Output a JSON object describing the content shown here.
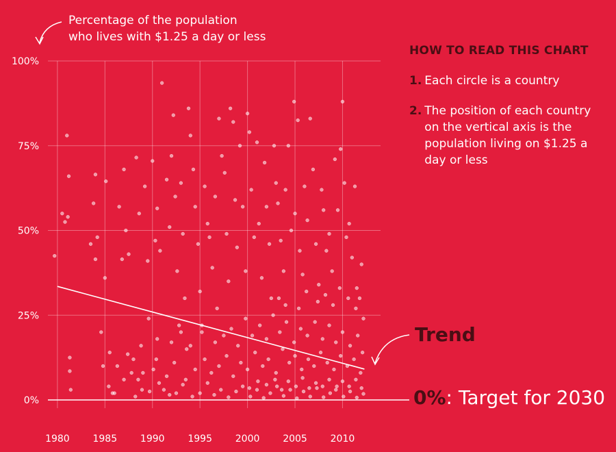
{
  "ylabel_lines": [
    "Percentage of the population",
    "who lives with $1.25 a day or less"
  ],
  "guide": {
    "title": "HOW TO READ THIS CHART",
    "steps": [
      {
        "num": "1.",
        "text": "Each circle is a country"
      },
      {
        "num": "2.",
        "text": "The position of each country on the vertical axis is the population living on $1.25 a day or less"
      }
    ]
  },
  "trend_label": "Trend",
  "target": {
    "bold": "0%",
    "rest": ": Target for 2030"
  },
  "colors": {
    "background": "#e31d3c",
    "accent_dark": "#4a0e14",
    "foreground": "#ffffff"
  },
  "chart_data": {
    "type": "scatter",
    "ylabel": "Percentage of the population who lives with $1.25 a day or less",
    "xlim": [
      1979,
      2014
    ],
    "ylim": [
      0,
      100
    ],
    "yticks": [
      0,
      25,
      50,
      75,
      100
    ],
    "ytick_labels": [
      "0%",
      "25%",
      "50%",
      "75%",
      "100%"
    ],
    "xticks": [
      1980,
      1985,
      1990,
      1995,
      2000,
      2005,
      2010
    ],
    "xtick_labels": [
      "1980",
      "1985",
      "1990",
      "1995",
      "2000",
      "2005",
      "2010"
    ],
    "grid": true,
    "trend": {
      "x": [
        1980,
        2012.3
      ],
      "y": [
        33.5,
        9.1
      ],
      "label": "Trend"
    },
    "target_line": {
      "y": 0
    },
    "points": [
      [
        1979.7,
        42.5
      ],
      [
        1980.5,
        55
      ],
      [
        1980.8,
        52.5
      ],
      [
        1981,
        78
      ],
      [
        1981.1,
        54
      ],
      [
        1981.3,
        12.5
      ],
      [
        1981.4,
        3
      ],
      [
        1981.2,
        66
      ],
      [
        1981.3,
        8.5
      ],
      [
        1983.5,
        46
      ],
      [
        1983.8,
        58
      ],
      [
        1984,
        66.5
      ],
      [
        1984.2,
        48
      ],
      [
        1984,
        41.5
      ],
      [
        1984.6,
        20
      ],
      [
        1984.8,
        10
      ],
      [
        1985.1,
        64.5
      ],
      [
        1985,
        36
      ],
      [
        1985.5,
        14
      ],
      [
        1985.8,
        2
      ],
      [
        1986.5,
        57
      ],
      [
        1986.8,
        41.5
      ],
      [
        1987,
        68
      ],
      [
        1987.2,
        50
      ],
      [
        1987.5,
        43
      ],
      [
        1987.4,
        13.5
      ],
      [
        1987.8,
        8
      ],
      [
        1988.3,
        71.5
      ],
      [
        1988.6,
        55
      ],
      [
        1988.8,
        16
      ],
      [
        1988.5,
        6
      ],
      [
        1988.9,
        3
      ],
      [
        1989.2,
        63
      ],
      [
        1989.5,
        41
      ],
      [
        1989.6,
        24
      ],
      [
        1990,
        70.5
      ],
      [
        1990.3,
        47
      ],
      [
        1990.5,
        56.5
      ],
      [
        1990.8,
        44
      ],
      [
        1990.4,
        12
      ],
      [
        1990.7,
        5
      ],
      [
        1991,
        93.5
      ],
      [
        1991.5,
        65
      ],
      [
        1991.8,
        51
      ],
      [
        1992,
        72
      ],
      [
        1992.2,
        84
      ],
      [
        1992.4,
        60
      ],
      [
        1992.6,
        38
      ],
      [
        1992.8,
        22
      ],
      [
        1993,
        64
      ],
      [
        1993.2,
        49
      ],
      [
        1993.4,
        30
      ],
      [
        1993.6,
        15
      ],
      [
        1993.8,
        86
      ],
      [
        1994,
        78
      ],
      [
        1994.3,
        68
      ],
      [
        1994.5,
        57
      ],
      [
        1994.8,
        46
      ],
      [
        1995,
        32
      ],
      [
        1995.2,
        20
      ],
      [
        1995.5,
        63
      ],
      [
        1995.8,
        52
      ],
      [
        1996,
        48
      ],
      [
        1996.3,
        39
      ],
      [
        1996.6,
        60
      ],
      [
        1996.8,
        27
      ],
      [
        1997,
        83
      ],
      [
        1997.3,
        72
      ],
      [
        1997.6,
        67
      ],
      [
        1997.8,
        49
      ],
      [
        1998,
        35
      ],
      [
        1998.2,
        86
      ],
      [
        1998.5,
        82
      ],
      [
        1998.7,
        59
      ],
      [
        1998.9,
        45
      ],
      [
        1999.2,
        75
      ],
      [
        1999.5,
        57
      ],
      [
        1999.8,
        38
      ],
      [
        2000,
        84.5
      ],
      [
        2000.2,
        79
      ],
      [
        2000.4,
        62
      ],
      [
        2000.7,
        48
      ],
      [
        2001,
        76
      ],
      [
        2001.2,
        52
      ],
      [
        2001.5,
        36
      ],
      [
        2001.8,
        70
      ],
      [
        2002,
        57
      ],
      [
        2002.3,
        46
      ],
      [
        2002.5,
        30
      ],
      [
        2002.8,
        75
      ],
      [
        2003,
        64
      ],
      [
        2003.2,
        58
      ],
      [
        2003.5,
        47
      ],
      [
        2003.8,
        38
      ],
      [
        2004,
        62
      ],
      [
        2004.3,
        75
      ],
      [
        2004.6,
        50
      ],
      [
        2004.9,
        88
      ],
      [
        2005,
        55
      ],
      [
        2005.3,
        82.5
      ],
      [
        2005.5,
        44
      ],
      [
        2005.8,
        37
      ],
      [
        2006,
        63
      ],
      [
        2006.3,
        53
      ],
      [
        2006.6,
        83
      ],
      [
        2006.9,
        68
      ],
      [
        2007.2,
        46
      ],
      [
        2007.5,
        34
      ],
      [
        2007.8,
        62
      ],
      [
        2008,
        56
      ],
      [
        2008.3,
        44
      ],
      [
        2008.6,
        49
      ],
      [
        2008.9,
        38
      ],
      [
        2009.2,
        71
      ],
      [
        2009.5,
        56
      ],
      [
        2009.8,
        74
      ],
      [
        2010,
        88
      ],
      [
        2010.2,
        64
      ],
      [
        2010.4,
        48
      ],
      [
        2010.7,
        52
      ],
      [
        2011,
        42
      ],
      [
        2011.3,
        63
      ],
      [
        2011.5,
        33
      ],
      [
        2011.8,
        30
      ],
      [
        2012,
        40
      ],
      [
        2012.2,
        24
      ],
      [
        1985.4,
        4
      ],
      [
        1986,
        2
      ],
      [
        1988.2,
        1
      ],
      [
        1989.7,
        2.5
      ],
      [
        1991.2,
        3
      ],
      [
        1991.8,
        1.5
      ],
      [
        1992.5,
        2
      ],
      [
        1993.2,
        4.5
      ],
      [
        1994.2,
        1
      ],
      [
        1995,
        2
      ],
      [
        1995.8,
        5
      ],
      [
        1996.5,
        1.5
      ],
      [
        1997.2,
        3
      ],
      [
        1998,
        0.8
      ],
      [
        1998.8,
        2.5
      ],
      [
        1999.5,
        4
      ],
      [
        2000.3,
        1
      ],
      [
        2001,
        3
      ],
      [
        2001.7,
        0.6
      ],
      [
        2002.4,
        2
      ],
      [
        2003.1,
        4
      ],
      [
        2003.8,
        1.2
      ],
      [
        2004.5,
        3
      ],
      [
        2005.2,
        0.5
      ],
      [
        2005.9,
        2.5
      ],
      [
        2006.6,
        1
      ],
      [
        2007.3,
        3.5
      ],
      [
        2008,
        0.8
      ],
      [
        2008.7,
        2
      ],
      [
        2009.4,
        4
      ],
      [
        2010.1,
        1
      ],
      [
        2010.8,
        2.5
      ],
      [
        2011.5,
        0.7
      ],
      [
        2012.2,
        1.8
      ],
      [
        1986.3,
        10
      ],
      [
        1987,
        6
      ],
      [
        1988,
        12
      ],
      [
        1989,
        8
      ],
      [
        1990.1,
        9
      ],
      [
        1991.5,
        7
      ],
      [
        1992.3,
        11
      ],
      [
        1993.5,
        6
      ],
      [
        1994.5,
        9
      ],
      [
        1995.5,
        12
      ],
      [
        1996.2,
        8
      ],
      [
        1997,
        10
      ],
      [
        1997.8,
        13
      ],
      [
        1998.5,
        7
      ],
      [
        1999.3,
        11
      ],
      [
        2000,
        9
      ],
      [
        2000.8,
        14
      ],
      [
        2001.6,
        10
      ],
      [
        2002.2,
        12
      ],
      [
        2003,
        8
      ],
      [
        2003.7,
        15
      ],
      [
        2004.4,
        11
      ],
      [
        2005,
        13
      ],
      [
        2005.7,
        9
      ],
      [
        2006.4,
        12
      ],
      [
        2007,
        10
      ],
      [
        2007.7,
        14
      ],
      [
        2008.4,
        11
      ],
      [
        2009.1,
        9
      ],
      [
        2009.8,
        13
      ],
      [
        2010.5,
        10
      ],
      [
        2011.2,
        12
      ],
      [
        2011.9,
        8
      ],
      [
        1990.5,
        18
      ],
      [
        1992,
        17
      ],
      [
        1993,
        20
      ],
      [
        1994,
        16
      ],
      [
        1995.2,
        22
      ],
      [
        1996.6,
        17
      ],
      [
        1997.5,
        19
      ],
      [
        1998.3,
        21
      ],
      [
        1999,
        16
      ],
      [
        1999.8,
        24
      ],
      [
        2000.5,
        19
      ],
      [
        2001.3,
        22
      ],
      [
        2002,
        18
      ],
      [
        2002.7,
        25
      ],
      [
        2003.4,
        20
      ],
      [
        2004.1,
        23
      ],
      [
        2004.9,
        17
      ],
      [
        2005.6,
        21
      ],
      [
        2006.3,
        19
      ],
      [
        2007.1,
        23
      ],
      [
        2007.9,
        18
      ],
      [
        2008.6,
        22
      ],
      [
        2009.3,
        17
      ],
      [
        2010,
        20
      ],
      [
        2010.8,
        16
      ],
      [
        2011.6,
        19
      ],
      [
        2012.1,
        14
      ],
      [
        2000.2,
        3.5
      ],
      [
        2001.1,
        5.5
      ],
      [
        2002,
        4.5
      ],
      [
        2002.9,
        6
      ],
      [
        2003.6,
        3
      ],
      [
        2004.3,
        5.5
      ],
      [
        2005.1,
        4
      ],
      [
        2005.8,
        6.5
      ],
      [
        2006.5,
        3.5
      ],
      [
        2007.2,
        5
      ],
      [
        2007.9,
        4
      ],
      [
        2008.6,
        6
      ],
      [
        2009.3,
        3
      ],
      [
        2010,
        5.5
      ],
      [
        2010.7,
        4
      ],
      [
        2011.4,
        6
      ],
      [
        2012,
        3.5
      ],
      [
        2003.3,
        30
      ],
      [
        2004,
        28
      ],
      [
        2005.4,
        27
      ],
      [
        2006.2,
        32
      ],
      [
        2007.4,
        29
      ],
      [
        2008.2,
        31
      ],
      [
        2009,
        28
      ],
      [
        2009.7,
        33
      ],
      [
        2010.6,
        30
      ],
      [
        2011.4,
        27
      ]
    ]
  }
}
